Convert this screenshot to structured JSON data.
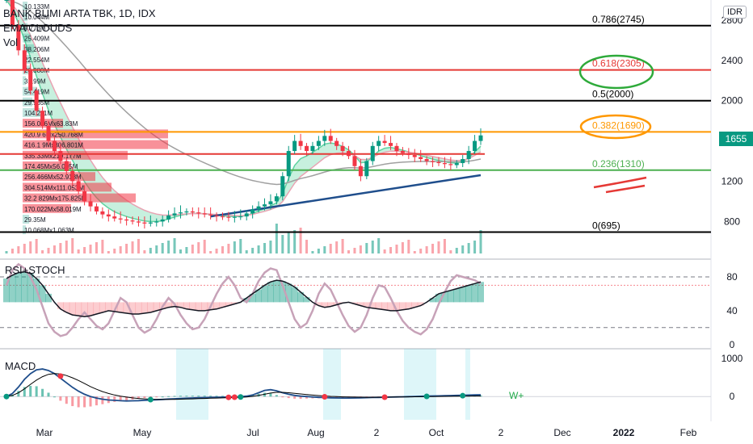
{
  "header": {
    "title": "BANK BUMI ARTA TBK, 1D, IDX",
    "indicator": "EMA CLOUDS",
    "volume": "Vol"
  },
  "currency": "IDR",
  "price_tag": "1655",
  "panes": {
    "rsi_title": "RSI+STOCH",
    "macd_title": "MACD"
  },
  "signal": "W+",
  "colors": {
    "up": "#089981",
    "down": "#f23645",
    "fib_0786": "#000000",
    "fib_0618": "#e53935",
    "fib_0382": "#ff9800",
    "fib_0236": "#4caf50",
    "trend": "#1f4e8c",
    "ema_fast": "#5fd3a0",
    "ema_slow": "#e9a3b3"
  },
  "chart_data": [
    {
      "type": "candlestick",
      "title": "BANK BUMI ARTA TBK, 1D, IDX",
      "y_axis": {
        "ticks": [
          800,
          1200,
          1600,
          2000,
          2400,
          2800
        ],
        "ylim": [
          450,
          3000
        ]
      },
      "x_axis": {
        "tick_labels": [
          "Mar",
          "May",
          "Jul",
          "Aug",
          "2",
          "Oct",
          "2",
          "Dec",
          "2022",
          "Feb"
        ]
      },
      "fib_levels": [
        {
          "label": "0.786(2745)",
          "value": 2745
        },
        {
          "label": "0.618(2305)",
          "value": 2305
        },
        {
          "label": "0.5(2000)",
          "value": 2000
        },
        {
          "label": "0.382(1690)",
          "value": 1690
        },
        {
          "label": "0.236(1310)",
          "value": 1310
        },
        {
          "label": "0(695)",
          "value": 695
        }
      ],
      "extra_levels": [
        1470
      ],
      "last_price": 1655,
      "price_series": [
        3000,
        2750,
        2500,
        2300,
        2100,
        1900,
        1750,
        1600,
        1500,
        1400,
        1300,
        1200,
        1100,
        1000,
        950,
        900,
        870,
        850,
        830,
        820,
        810,
        800,
        790,
        780,
        790,
        800,
        820,
        860,
        880,
        890,
        900,
        890,
        880,
        870,
        860,
        850,
        845,
        840,
        845,
        850,
        880,
        920,
        950,
        970,
        1000,
        1050,
        1250,
        1500,
        1600,
        1550,
        1500,
        1550,
        1600,
        1650,
        1600,
        1550,
        1500,
        1450,
        1350,
        1250,
        1400,
        1550,
        1600,
        1580,
        1550,
        1500,
        1480,
        1460,
        1440,
        1420,
        1400,
        1390,
        1380,
        1370,
        1360,
        1380,
        1420,
        1500,
        1600,
        1655
      ],
      "volume_profile": [
        "10.133M",
        "10.044M",
        "9.773M",
        "25.409M",
        "38.206M",
        "22.554M",
        "20.880M",
        "3.199M",
        "54.419M",
        "29.965M",
        "104.211M",
        "156.016Mx63.83M",
        "420.9 6Mx250.768M",
        "416.1 9Mx306.801M",
        "335.33Mx219.177M",
        "174.45Mx56.005M",
        "256.466Mx52.918M",
        "304.514Mx111.053M",
        "32.2 829Mx175.825M",
        "170.022Mx58.019M",
        "29.35M",
        "10.068Mx1.063M"
      ]
    },
    {
      "type": "line",
      "title": "RSI+STOCH",
      "y_axis": {
        "ticks": [
          80,
          40,
          0
        ],
        "ylim": [
          -5,
          100
        ]
      },
      "rsi": [
        78,
        82,
        85,
        86,
        84,
        78,
        70,
        60,
        50,
        42,
        38,
        35,
        34,
        33,
        34,
        36,
        38,
        40,
        39,
        38,
        37,
        36,
        36,
        37,
        38,
        40,
        42,
        44,
        45,
        44,
        42,
        41,
        40,
        40,
        41,
        42,
        44,
        46,
        48,
        50,
        55,
        60,
        65,
        70,
        74,
        76,
        75,
        72,
        68,
        62,
        56,
        50,
        46,
        44,
        45,
        47,
        49,
        50,
        48,
        46,
        44,
        43,
        42,
        41,
        40,
        40,
        41,
        42,
        44,
        46,
        50,
        55,
        60,
        62,
        64,
        66,
        68,
        70,
        72,
        74
      ],
      "stoch": [
        70,
        88,
        95,
        90,
        80,
        65,
        45,
        25,
        15,
        10,
        12,
        20,
        30,
        38,
        30,
        22,
        18,
        25,
        40,
        55,
        50,
        35,
        20,
        14,
        18,
        30,
        45,
        55,
        48,
        35,
        25,
        18,
        20,
        30,
        45,
        60,
        72,
        80,
        70,
        55,
        50,
        60,
        75,
        85,
        90,
        88,
        70,
        50,
        30,
        20,
        25,
        40,
        60,
        72,
        65,
        50,
        35,
        22,
        15,
        20,
        35,
        55,
        70,
        68,
        55,
        40,
        28,
        20,
        15,
        12,
        18,
        30,
        48,
        62,
        75,
        82,
        80,
        78,
        76,
        72
      ]
    },
    {
      "type": "line",
      "title": "MACD",
      "y_axis": {
        "ticks": [
          1000,
          0
        ],
        "ylim": [
          -650,
          1250
        ]
      },
      "macd": [
        0,
        80,
        250,
        450,
        600,
        700,
        720,
        680,
        600,
        480,
        360,
        240,
        140,
        60,
        0,
        -40,
        -70,
        -90,
        -100,
        -110,
        -115,
        -112,
        -108,
        -100,
        -92,
        -84,
        -76,
        -66,
        -58,
        -50,
        -44,
        -38,
        -32,
        -28,
        -24,
        -20,
        -16,
        -12,
        -8,
        -4,
        10,
        40,
        100,
        160,
        180,
        150,
        100,
        60,
        30,
        10,
        0,
        -10,
        -20,
        -28,
        -34,
        -38,
        -40,
        -40,
        -38,
        -34,
        -30,
        -26,
        -22,
        -18,
        -14,
        -10,
        -6,
        -2,
        2,
        6,
        10,
        14,
        18,
        22,
        26,
        30,
        34,
        38,
        42,
        46
      ],
      "signal": [
        0,
        30,
        100,
        200,
        320,
        430,
        520,
        580,
        600,
        590,
        550,
        490,
        420,
        340,
        260,
        190,
        130,
        80,
        40,
        10,
        -15,
        -35,
        -50,
        -62,
        -70,
        -74,
        -76,
        -76,
        -74,
        -70,
        -65,
        -60,
        -55,
        -50,
        -45,
        -40,
        -35,
        -30,
        -25,
        -20,
        -10,
        5,
        30,
        60,
        90,
        110,
        110,
        100,
        85,
        68,
        52,
        38,
        25,
        14,
        5,
        -2,
        -8,
        -12,
        -15,
        -17,
        -18,
        -18,
        -17,
        -16,
        -14,
        -12,
        -10,
        -8,
        -6,
        -4,
        -2,
        0,
        2,
        4,
        6,
        8,
        10,
        12,
        14,
        16
      ],
      "signal_label": "W+"
    }
  ]
}
